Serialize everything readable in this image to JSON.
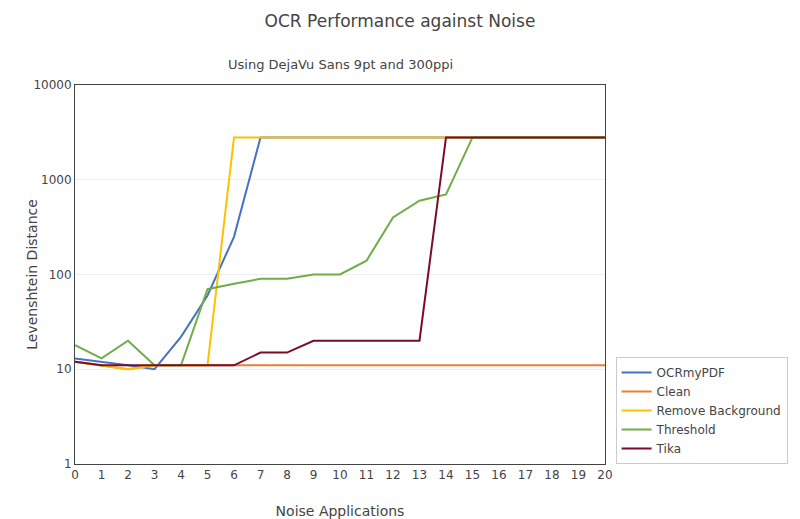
{
  "chart_data": {
    "type": "line",
    "title": "OCR Performance against Noise",
    "subtitle": "Using DejaVu Sans 9pt and 300ppi",
    "xlabel": "Noise Applications",
    "ylabel": "Levenshtein Distance",
    "x": [
      0,
      1,
      2,
      3,
      4,
      5,
      6,
      7,
      8,
      9,
      10,
      11,
      12,
      13,
      14,
      15,
      16,
      17,
      18,
      19,
      20
    ],
    "series": [
      {
        "name": "OCRmyPDF",
        "color": "#4472C4",
        "values": [
          13,
          12,
          11,
          10,
          22,
          60,
          250,
          2800,
          2800,
          2800,
          2800,
          2800,
          2800,
          2800,
          2800,
          2800,
          2800,
          2800,
          2800,
          2800,
          2800
        ]
      },
      {
        "name": "Clean",
        "color": "#ED7D31",
        "values": [
          12,
          11,
          10,
          11,
          11,
          11,
          11,
          11,
          11,
          11,
          11,
          11,
          11,
          11,
          11,
          11,
          11,
          11,
          11,
          11,
          11
        ]
      },
      {
        "name": "Remove Background",
        "color": "#FFC000",
        "values": [
          12,
          11,
          10,
          11,
          11,
          11,
          2800,
          2800,
          2800,
          2800,
          2800,
          2800,
          2800,
          2800,
          2800,
          2800,
          2800,
          2800,
          2800,
          2800,
          2800
        ]
      },
      {
        "name": "Threshold",
        "color": "#70AD47",
        "values": [
          18,
          13,
          20,
          11,
          11,
          70,
          80,
          90,
          90,
          100,
          100,
          140,
          400,
          600,
          700,
          2800,
          2800,
          2800,
          2800,
          2800,
          2800
        ]
      },
      {
        "name": "Tika",
        "color": "#7B0C28",
        "values": [
          12,
          11,
          11,
          11,
          11,
          11,
          11,
          15,
          15,
          20,
          20,
          20,
          20,
          20,
          2800,
          2800,
          2800,
          2800,
          2800,
          2800,
          2800
        ]
      }
    ],
    "xlim": [
      0,
      20
    ],
    "xticks": [
      0,
      1,
      2,
      3,
      4,
      5,
      6,
      7,
      8,
      9,
      10,
      11,
      12,
      13,
      14,
      15,
      16,
      17,
      18,
      19,
      20
    ],
    "ylim": [
      1,
      10000
    ],
    "yticks": [
      1,
      10,
      100,
      1000,
      10000
    ],
    "log": "y",
    "grid": "y",
    "legend": "lower right"
  }
}
